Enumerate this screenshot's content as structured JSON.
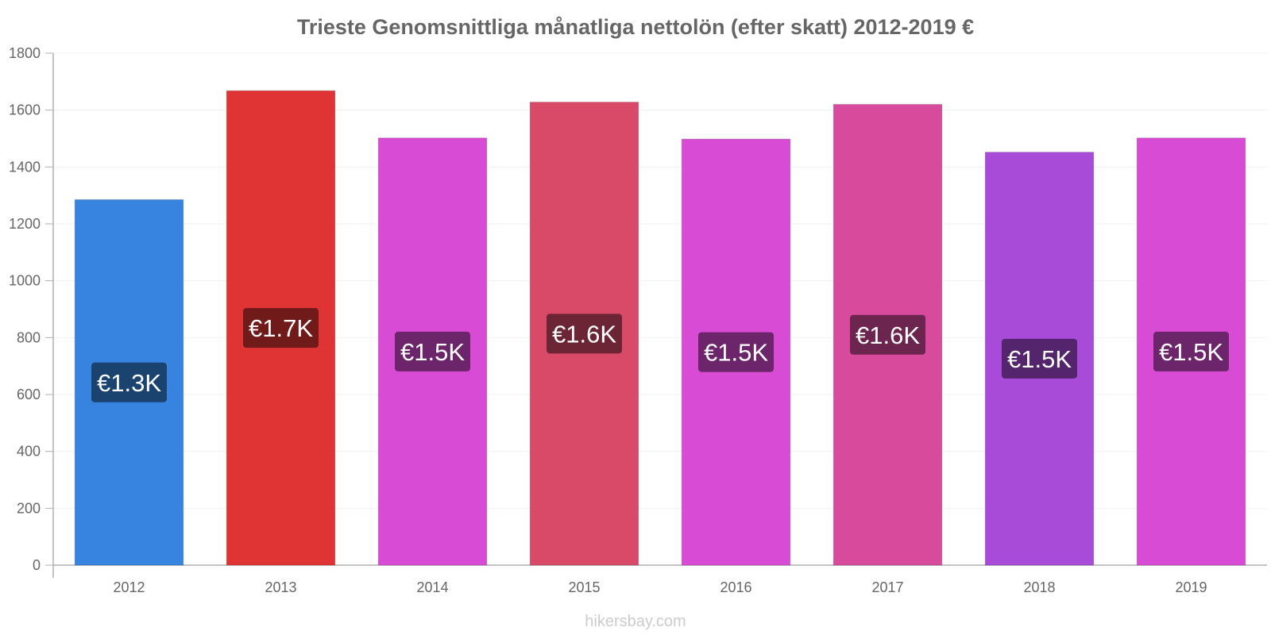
{
  "chart_data": {
    "type": "bar",
    "title": "Trieste Genomsnittliga månatliga nettolön (efter skatt) 2012-2019 €",
    "xlabel": "",
    "ylabel": "",
    "categories": [
      "2012",
      "2013",
      "2014",
      "2015",
      "2016",
      "2017",
      "2018",
      "2019"
    ],
    "values": [
      1285,
      1668,
      1502,
      1628,
      1498,
      1620,
      1452,
      1502
    ],
    "data_labels": [
      "€1.3K",
      "€1.7K",
      "€1.5K",
      "€1.6K",
      "€1.5K",
      "€1.6K",
      "€1.5K",
      "€1.5K"
    ],
    "bar_colors": [
      "#3683e0",
      "#e03434",
      "#d84bd4",
      "#d84a68",
      "#d84bd4",
      "#d84a9c",
      "#a84bd8",
      "#d84bd4"
    ],
    "label_box_colors": [
      "#1b4370",
      "#701a1a",
      "#6c256a",
      "#6c2534",
      "#6c256a",
      "#6c254e",
      "#54256c",
      "#6c256a"
    ],
    "ylim": [
      0,
      1800
    ],
    "yticks": [
      "0",
      "200",
      "400",
      "600",
      "800",
      "1000",
      "1200",
      "1400",
      "1600",
      "1800"
    ],
    "grid": true,
    "legend": "none"
  },
  "footer": {
    "source": "hikersbay.com"
  }
}
